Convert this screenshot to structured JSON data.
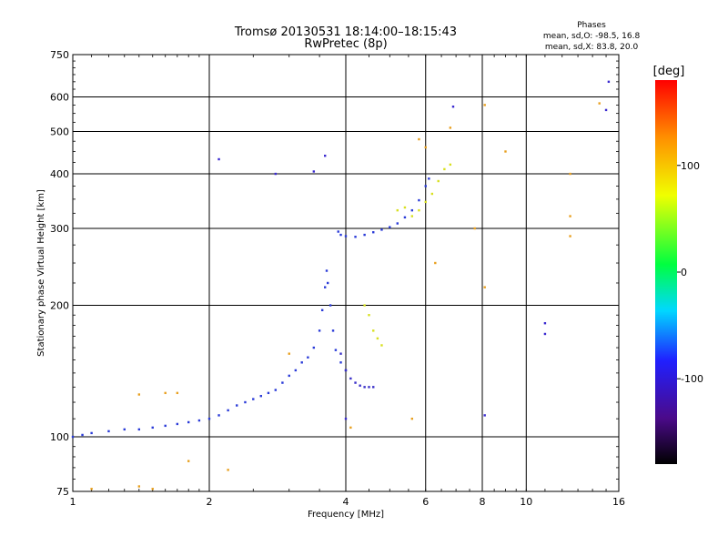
{
  "chart_data": {
    "type": "scatter",
    "title": "Tromsø 20130531 18:14:00–18:15:43",
    "subtitle": "RwPretec (8p)",
    "xlabel": "Frequency [MHz]",
    "ylabel": "Stationary phase Virtual Height [km]",
    "x_scale": "log",
    "y_scale": "log",
    "xlim": [
      1,
      16
    ],
    "ylim": [
      75,
      750
    ],
    "x_ticks": [
      1,
      2,
      4,
      6,
      8,
      10,
      16
    ],
    "y_ticks": [
      75,
      100,
      200,
      300,
      400,
      500,
      600,
      750
    ],
    "x_grid": [
      2,
      4,
      6,
      8,
      10
    ],
    "y_grid": [
      100,
      200,
      300,
      400,
      500,
      600
    ],
    "grid": true,
    "phases": {
      "title": "Phases",
      "o_line": "mean, sd,O: -98.5, 16.8",
      "x_line": "mean, sd,X: 83.8, 20.0"
    },
    "colorbar": {
      "label": "[deg]",
      "ticks": [
        100,
        0,
        -100
      ],
      "range": [
        -180,
        180
      ],
      "colormap": "rainbow (black → purple → blue → cyan → green → yellow → orange → red)"
    },
    "series": [
      {
        "trace": "F-region O-mode trace (low)",
        "color": "#2a3bd8",
        "points": [
          [
            1.0,
            100
          ],
          [
            1.05,
            101
          ],
          [
            1.1,
            102
          ],
          [
            1.2,
            103
          ],
          [
            1.3,
            104
          ],
          [
            1.4,
            104
          ],
          [
            1.5,
            105
          ],
          [
            1.6,
            106
          ],
          [
            1.7,
            107
          ],
          [
            1.8,
            108
          ],
          [
            1.9,
            109
          ],
          [
            2.0,
            110
          ],
          [
            2.1,
            112
          ],
          [
            2.2,
            115
          ],
          [
            2.3,
            118
          ],
          [
            2.4,
            120
          ],
          [
            2.5,
            122
          ],
          [
            2.6,
            124
          ],
          [
            2.7,
            126
          ],
          [
            2.8,
            128
          ],
          [
            2.9,
            133
          ],
          [
            3.0,
            138
          ],
          [
            3.1,
            142
          ],
          [
            3.2,
            148
          ],
          [
            3.3,
            152
          ],
          [
            3.4,
            160
          ],
          [
            3.5,
            175
          ],
          [
            3.55,
            195
          ],
          [
            3.6,
            220
          ],
          [
            3.63,
            240
          ],
          [
            3.65,
            225
          ],
          [
            3.7,
            200
          ],
          [
            3.75,
            175
          ],
          [
            3.8,
            158
          ],
          [
            3.9,
            148
          ],
          [
            4.0,
            142
          ]
        ]
      },
      {
        "trace": "Upper branch O-mode",
        "color": "#2a3bd8",
        "points": [
          [
            3.85,
            295
          ],
          [
            3.9,
            290
          ],
          [
            4.0,
            288
          ],
          [
            4.2,
            287
          ],
          [
            4.4,
            290
          ],
          [
            4.6,
            294
          ],
          [
            4.8,
            298
          ],
          [
            5.0,
            302
          ],
          [
            5.2,
            308
          ],
          [
            5.4,
            318
          ],
          [
            5.6,
            330
          ],
          [
            5.8,
            348
          ],
          [
            6.0,
            375
          ],
          [
            6.1,
            390
          ]
        ]
      },
      {
        "trace": "Secondary O-mode branch",
        "color": "#3a30c8",
        "points": [
          [
            3.9,
            155
          ],
          [
            4.0,
            142
          ],
          [
            4.1,
            136
          ],
          [
            4.2,
            133
          ],
          [
            4.3,
            131
          ],
          [
            4.4,
            130
          ],
          [
            4.5,
            130
          ],
          [
            4.6,
            130
          ]
        ]
      },
      {
        "trace": "X-mode trace",
        "color": "#d8e020",
        "points": [
          [
            4.4,
            200
          ],
          [
            4.5,
            190
          ],
          [
            4.6,
            175
          ],
          [
            4.7,
            168
          ],
          [
            4.8,
            162
          ],
          [
            5.2,
            330
          ],
          [
            5.4,
            335
          ],
          [
            5.6,
            320
          ],
          [
            5.8,
            330
          ],
          [
            6.0,
            345
          ],
          [
            6.2,
            360
          ],
          [
            6.4,
            385
          ],
          [
            6.6,
            410
          ],
          [
            6.8,
            420
          ]
        ]
      },
      {
        "trace": "Scattered echoes",
        "color": "#e8a020",
        "points": [
          [
            1.1,
            76
          ],
          [
            1.4,
            77
          ],
          [
            1.5,
            76
          ],
          [
            1.8,
            88
          ],
          [
            2.2,
            84
          ],
          [
            1.4,
            125
          ],
          [
            1.6,
            126
          ],
          [
            1.7,
            126
          ],
          [
            3.0,
            155
          ],
          [
            4.1,
            105
          ],
          [
            5.8,
            480
          ],
          [
            6.0,
            460
          ],
          [
            6.8,
            510
          ],
          [
            7.7,
            300
          ],
          [
            8.1,
            575
          ],
          [
            8.1,
            220
          ],
          [
            9.0,
            450
          ],
          [
            12.5,
            400
          ],
          [
            12.5,
            320
          ],
          [
            12.5,
            288
          ],
          [
            14.5,
            580
          ],
          [
            6.3,
            250
          ],
          [
            5.6,
            110
          ]
        ]
      },
      {
        "trace": "Isolated low-phase echoes",
        "color": "#3a2ad0",
        "points": [
          [
            2.1,
            432
          ],
          [
            2.8,
            400
          ],
          [
            3.4,
            405
          ],
          [
            3.6,
            440
          ],
          [
            8.1,
            112
          ],
          [
            11.0,
            182
          ],
          [
            11.0,
            172
          ],
          [
            15.0,
            560
          ],
          [
            15.2,
            650
          ],
          [
            6.9,
            570
          ],
          [
            4.0,
            110
          ]
        ]
      }
    ]
  }
}
